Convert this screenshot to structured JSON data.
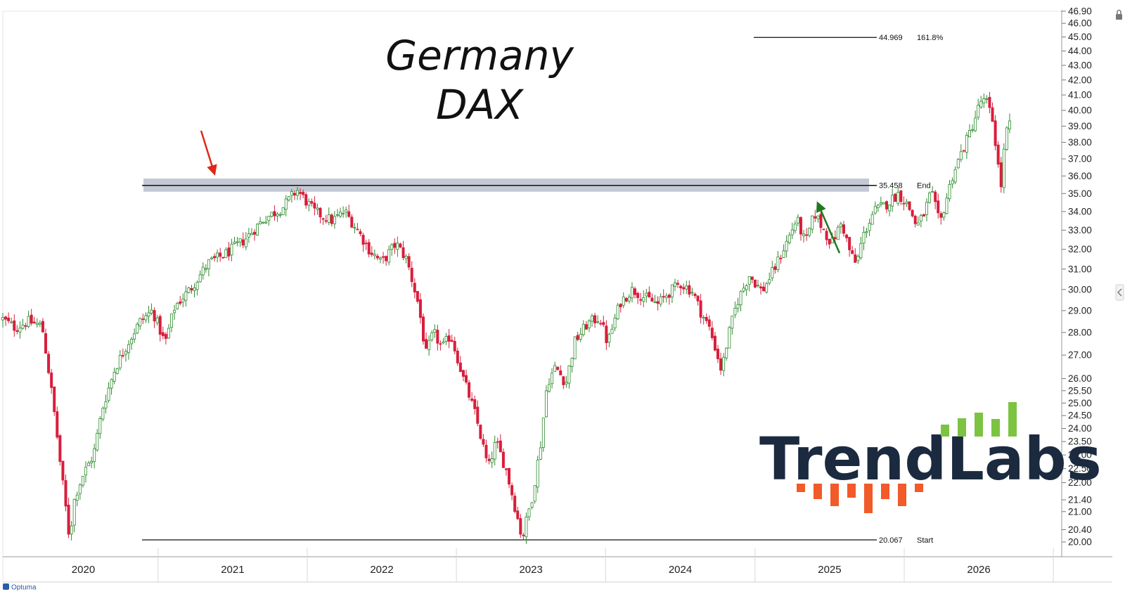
{
  "chart_data": {
    "type": "candlestick",
    "title": "Germany",
    "subtitle": "DAX",
    "y_scale": "log",
    "ylim": [
      20.0,
      46.9
    ],
    "x_range": [
      "2019-10-01",
      "2026-11-01"
    ],
    "y_ticks": [
      "20.00",
      "20.40",
      "21.00",
      "21.40",
      "22.00",
      "22.50",
      "23.00",
      "23.50",
      "24.00",
      "24.50",
      "25.00",
      "25.50",
      "26.00",
      "27.00",
      "28.00",
      "29.00",
      "30.00",
      "31.00",
      "32.00",
      "33.00",
      "34.00",
      "35.00",
      "36.00",
      "37.00",
      "38.00",
      "39.00",
      "40.00",
      "41.00",
      "42.00",
      "43.00",
      "44.00",
      "45.00",
      "46.00",
      "46.90"
    ],
    "x_ticks": [
      "2020",
      "2021",
      "2022",
      "2023",
      "2024",
      "2025",
      "2026"
    ],
    "grid": false,
    "colors": {
      "up": "#2e8b2e",
      "down": "#d81e3c",
      "resistance_band": "#b8c0cc"
    },
    "levels": [
      {
        "value": 44.969,
        "label_value": "44.969",
        "label_text": "161.8%"
      },
      {
        "value": 35.458,
        "label_value": "35.458",
        "label_text": "End"
      },
      {
        "value": 20.067,
        "label_value": "20.067",
        "label_text": "Start"
      }
    ],
    "resistance_zone": [
      35.1,
      35.85
    ],
    "annotations": [
      {
        "type": "arrow",
        "color": "red",
        "points_to": "2021 high near the resistance zone"
      },
      {
        "type": "arrow",
        "color": "green",
        "points_to": "2025 retest of the resistance zone"
      }
    ],
    "weekly_closes": [
      {
        "date": "2019-10-01",
        "close": 28.6
      },
      {
        "date": "2019-11-01",
        "close": 28.2
      },
      {
        "date": "2019-12-01",
        "close": 28.5
      },
      {
        "date": "2020-01-05",
        "close": 28.3
      },
      {
        "date": "2020-02-01",
        "close": 25.0
      },
      {
        "date": "2020-02-20",
        "close": 22.5
      },
      {
        "date": "2020-03-12",
        "close": 20.1
      },
      {
        "date": "2020-03-25",
        "close": 21.5
      },
      {
        "date": "2020-04-15",
        "close": 22.3
      },
      {
        "date": "2020-05-10",
        "close": 23.0
      },
      {
        "date": "2020-06-01",
        "close": 24.8
      },
      {
        "date": "2020-07-01",
        "close": 26.4
      },
      {
        "date": "2020-08-01",
        "close": 27.5
      },
      {
        "date": "2020-09-01",
        "close": 28.5
      },
      {
        "date": "2020-10-01",
        "close": 29.0
      },
      {
        "date": "2020-11-01",
        "close": 27.5
      },
      {
        "date": "2020-11-25",
        "close": 29.2
      },
      {
        "date": "2021-01-01",
        "close": 30.0
      },
      {
        "date": "2021-02-15",
        "close": 31.3
      },
      {
        "date": "2021-04-01",
        "close": 31.8
      },
      {
        "date": "2021-05-15",
        "close": 32.5
      },
      {
        "date": "2021-07-01",
        "close": 33.6
      },
      {
        "date": "2021-08-15",
        "close": 34.2
      },
      {
        "date": "2021-09-20",
        "close": 35.2
      },
      {
        "date": "2021-11-01",
        "close": 34.0
      },
      {
        "date": "2021-12-15",
        "close": 33.5
      },
      {
        "date": "2022-01-15",
        "close": 34.0
      },
      {
        "date": "2022-02-15",
        "close": 33.0
      },
      {
        "date": "2022-03-15",
        "close": 32.0
      },
      {
        "date": "2022-04-15",
        "close": 31.3
      },
      {
        "date": "2022-05-20",
        "close": 32.3
      },
      {
        "date": "2022-06-15",
        "close": 31.5
      },
      {
        "date": "2022-07-15",
        "close": 29.2
      },
      {
        "date": "2022-08-01",
        "close": 27.0
      },
      {
        "date": "2022-08-20",
        "close": 28.0
      },
      {
        "date": "2022-09-10",
        "close": 27.3
      },
      {
        "date": "2022-10-01",
        "close": 27.9
      },
      {
        "date": "2022-11-01",
        "close": 26.0
      },
      {
        "date": "2022-12-01",
        "close": 24.5
      },
      {
        "date": "2023-01-01",
        "close": 22.5
      },
      {
        "date": "2023-01-20",
        "close": 23.5
      },
      {
        "date": "2023-02-15",
        "close": 22.4
      },
      {
        "date": "2023-03-10",
        "close": 21.0
      },
      {
        "date": "2023-03-25",
        "close": 20.1
      },
      {
        "date": "2023-04-20",
        "close": 21.6
      },
      {
        "date": "2023-05-10",
        "close": 23.5
      },
      {
        "date": "2023-05-25",
        "close": 25.8
      },
      {
        "date": "2023-06-15",
        "close": 26.5
      },
      {
        "date": "2023-07-10",
        "close": 25.8
      },
      {
        "date": "2023-08-01",
        "close": 27.6
      },
      {
        "date": "2023-09-01",
        "close": 28.4
      },
      {
        "date": "2023-10-01",
        "close": 28.7
      },
      {
        "date": "2023-10-20",
        "close": 27.5
      },
      {
        "date": "2023-11-20",
        "close": 29.4
      },
      {
        "date": "2023-12-20",
        "close": 30.0
      },
      {
        "date": "2024-01-20",
        "close": 29.6
      },
      {
        "date": "2024-02-20",
        "close": 29.3
      },
      {
        "date": "2024-03-15",
        "close": 29.8
      },
      {
        "date": "2024-04-15",
        "close": 30.3
      },
      {
        "date": "2024-05-15",
        "close": 29.9
      },
      {
        "date": "2024-06-05",
        "close": 28.9
      },
      {
        "date": "2024-06-25",
        "close": 28.2
      },
      {
        "date": "2024-07-10",
        "close": 27.3
      },
      {
        "date": "2024-07-25",
        "close": 26.3
      },
      {
        "date": "2024-08-10",
        "close": 27.8
      },
      {
        "date": "2024-09-01",
        "close": 29.4
      },
      {
        "date": "2024-10-01",
        "close": 30.7
      },
      {
        "date": "2024-11-01",
        "close": 29.9
      },
      {
        "date": "2024-12-01",
        "close": 31.0
      },
      {
        "date": "2025-01-01",
        "close": 32.4
      },
      {
        "date": "2025-01-25",
        "close": 33.6
      },
      {
        "date": "2025-02-15",
        "close": 32.3
      },
      {
        "date": "2025-03-10",
        "close": 33.9
      },
      {
        "date": "2025-04-01",
        "close": 33.0
      },
      {
        "date": "2025-04-20",
        "close": 32.3
      },
      {
        "date": "2025-05-15",
        "close": 33.4
      },
      {
        "date": "2025-06-05",
        "close": 31.8
      },
      {
        "date": "2025-06-20",
        "close": 31.2
      },
      {
        "date": "2025-07-05",
        "close": 32.6
      },
      {
        "date": "2025-08-01",
        "close": 34.0
      },
      {
        "date": "2025-09-01",
        "close": 34.4
      },
      {
        "date": "2025-10-01",
        "close": 35.0
      },
      {
        "date": "2025-10-25",
        "close": 34.3
      },
      {
        "date": "2025-11-15",
        "close": 33.2
      },
      {
        "date": "2025-12-01",
        "close": 33.8
      },
      {
        "date": "2025-12-20",
        "close": 35.1
      },
      {
        "date": "2026-01-10",
        "close": 33.3
      },
      {
        "date": "2026-01-25",
        "close": 34.6
      },
      {
        "date": "2026-02-10",
        "close": 36.0
      },
      {
        "date": "2026-03-01",
        "close": 37.2
      },
      {
        "date": "2026-03-20",
        "close": 38.3
      },
      {
        "date": "2026-04-05",
        "close": 39.4
      },
      {
        "date": "2026-04-20",
        "close": 40.6
      },
      {
        "date": "2026-05-05",
        "close": 40.5
      },
      {
        "date": "2026-05-20",
        "close": 39.3
      },
      {
        "date": "2026-06-01",
        "close": 36.8
      },
      {
        "date": "2026-06-08",
        "close": 35.2
      },
      {
        "date": "2026-06-20",
        "close": 38.5
      },
      {
        "date": "2026-07-01",
        "close": 39.1
      }
    ]
  },
  "branding": {
    "logo_text": "TrendLabs",
    "footer_text": "Optuma",
    "logo_colors": {
      "text": "#1b2a3e",
      "green": "#7cc342",
      "orange": "#f15a29"
    }
  }
}
